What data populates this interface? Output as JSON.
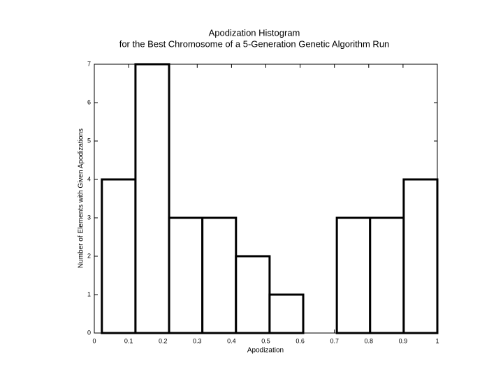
{
  "chart_data": {
    "type": "histogram",
    "title": "Apodization Histogram",
    "subtitle": "for the Best Chromosome of a 5-Generation Genetic Algorithm Run",
    "x_label": "Apodization",
    "y_label": "Number of Elements with Given Apodizations",
    "bins": [
      0.022,
      0.12,
      0.218,
      0.315,
      0.413,
      0.511,
      0.609,
      0.707,
      0.804,
      0.902,
      1.0
    ],
    "values": [
      4,
      7,
      3,
      3,
      2,
      1,
      0,
      3,
      3,
      4
    ],
    "color": "#ffffff",
    "edge_color": "#000000",
    "xlim": [
      0,
      1
    ],
    "xticks": [
      0,
      0.1,
      0.2,
      0.3,
      0.4,
      0.5,
      0.6,
      0.7,
      0.8,
      0.9,
      1
    ],
    "ylim": [
      0,
      7
    ],
    "yticks": [
      0,
      1,
      2,
      3,
      4,
      5,
      6,
      7
    ]
  }
}
